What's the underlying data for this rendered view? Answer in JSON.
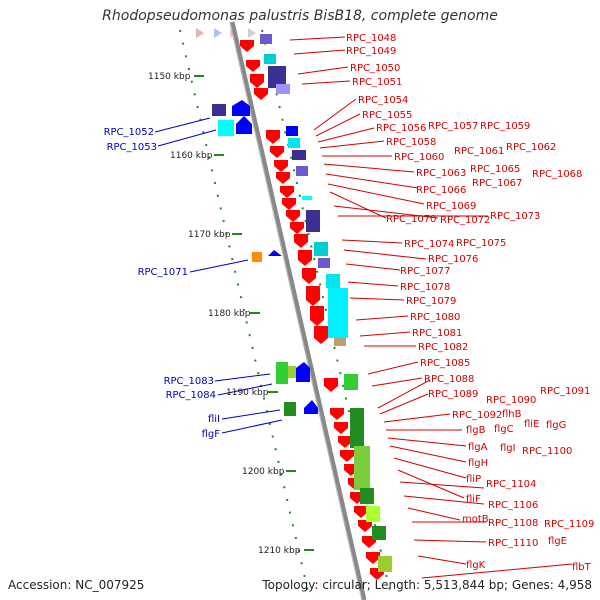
{
  "title": "Rhodopseudomonas palustris BisB18, complete genome",
  "footer": {
    "accession": "Accession: NC_007925",
    "summary": "Topology: circular; Length: 5,513,844 bp; Genes: 4,958"
  },
  "colors": {
    "backbone": "#8a8a8a",
    "label_red": "#d40000",
    "label_blue": "#0000c0",
    "tick_green": "#1e8a1e",
    "gene_red": "#ff0000",
    "gene_blue": "#0000ff"
  },
  "kbp_ticks": [
    "1150 kbp",
    "1160 kbp",
    "1170 kbp",
    "1180 kbp",
    "1190 kbp",
    "1200 kbp",
    "1210 kbp"
  ],
  "right_labels": [
    "RPC_1048",
    "RPC_1049",
    "RPC_1050",
    "RPC_1051",
    "RPC_1054",
    "RPC_1055",
    "RPC_1056",
    "RPC_1057",
    "RPC_1059",
    "RPC_1058",
    "RPC_1061",
    "RPC_1062",
    "RPC_1060",
    "RPC_1065",
    "RPC_1068",
    "RPC_1063",
    "RPC_1067",
    "RPC_1066",
    "RPC_1069",
    "RPC_1070",
    "RPC_1072",
    "RPC_1073",
    "RPC_1074",
    "RPC_1075",
    "RPC_1076",
    "RPC_1077",
    "RPC_1078",
    "RPC_1079",
    "RPC_1080",
    "RPC_1081",
    "RPC_1082",
    "RPC_1085",
    "RPC_1088",
    "RPC_1089",
    "RPC_1090",
    "RPC_1091",
    "RPC_1092",
    "flhB",
    "fliE",
    "flgB",
    "flgC",
    "flgG",
    "flgA",
    "flgI",
    "RPC_1100",
    "flgH",
    "fliP",
    "RPC_1104",
    "fliF",
    "RPC_1106",
    "motB",
    "RPC_1108",
    "RPC_1109",
    "RPC_1110",
    "flgE",
    "flgK",
    "flbT"
  ],
  "left_labels": [
    "RPC_1052",
    "RPC_1053",
    "RPC_1071",
    "RPC_1083",
    "RPC_1084",
    "fliI",
    "flgF"
  ]
}
